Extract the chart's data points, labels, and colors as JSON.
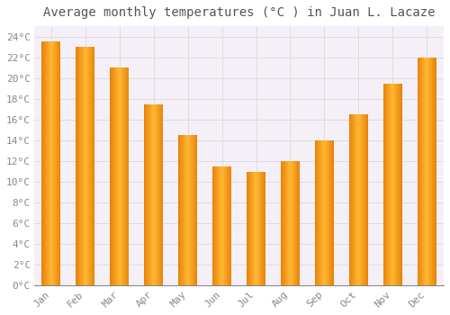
{
  "title": "Average monthly temperatures (°C ) in Juan L. Lacaze",
  "months": [
    "Jan",
    "Feb",
    "Mar",
    "Apr",
    "May",
    "Jun",
    "Jul",
    "Aug",
    "Sep",
    "Oct",
    "Nov",
    "Dec"
  ],
  "values": [
    23.5,
    23.0,
    21.0,
    17.5,
    14.5,
    11.5,
    11.0,
    12.0,
    14.0,
    16.5,
    19.5,
    22.0
  ],
  "bar_color_center": "#FFB833",
  "bar_color_edge": "#E8820A",
  "background_color": "#FFFFFF",
  "plot_bg_color": "#F5F0F8",
  "grid_color": "#DDDDDD",
  "ylim": [
    0,
    25
  ],
  "ytick_values": [
    0,
    2,
    4,
    6,
    8,
    10,
    12,
    14,
    16,
    18,
    20,
    22,
    24
  ],
  "title_fontsize": 10,
  "tick_fontsize": 8,
  "tick_color": "#888888",
  "title_color": "#555555",
  "font_family": "monospace"
}
